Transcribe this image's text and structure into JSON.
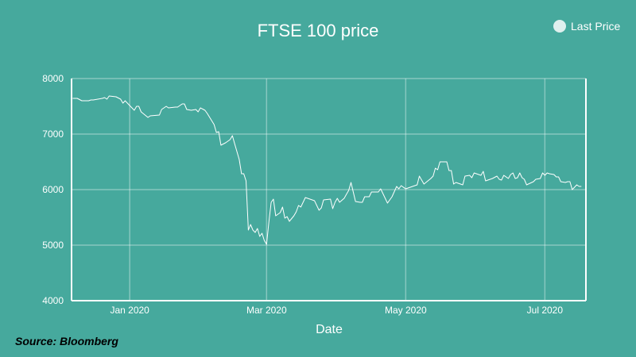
{
  "chart_data": {
    "type": "line",
    "title": "FTSE 100 price",
    "xlabel": "Date",
    "ylabel": "",
    "x_unit": "days since 2020-01-01",
    "xlim": [
      -25.5,
      200
    ],
    "ylim": [
      4000,
      8000
    ],
    "grid": true,
    "legend_position": "top-right",
    "x_ticks": [
      {
        "value": 0,
        "label": "Jan 2020"
      },
      {
        "value": 60,
        "label": "Mar 2020"
      },
      {
        "value": 121,
        "label": "May 2020"
      },
      {
        "value": 182,
        "label": "Jul 2020"
      }
    ],
    "y_ticks": [
      4000,
      5000,
      6000,
      7000,
      8000
    ],
    "series": [
      {
        "name": "Last Price",
        "color": "#ffffff",
        "x": [
          -25,
          -23,
          -21,
          -18,
          -17,
          -16,
          -12,
          -11,
          -10,
          -9,
          -6,
          -4,
          -3,
          -2,
          1,
          2,
          3,
          4,
          5,
          8,
          9,
          13,
          14,
          16,
          17,
          20,
          21,
          23,
          24,
          25,
          27,
          29,
          30,
          31,
          33,
          34,
          37,
          38,
          39,
          40,
          42,
          44,
          45,
          46,
          48,
          49,
          50,
          51,
          52,
          53,
          54,
          55,
          56,
          57,
          58,
          59,
          60,
          61,
          62,
          63,
          64,
          66,
          67,
          68,
          69,
          70,
          72,
          73,
          74,
          75,
          77,
          81,
          83,
          84,
          85,
          88,
          89,
          90,
          91,
          92,
          94,
          95,
          96,
          97,
          99,
          101,
          102,
          103,
          105,
          106,
          109,
          110,
          113,
          115,
          117,
          118,
          119,
          121,
          126,
          127,
          129,
          132,
          133,
          134,
          135,
          136,
          139,
          140,
          141,
          142,
          143,
          146,
          147,
          149,
          150,
          151,
          154,
          155,
          156,
          159,
          161,
          162,
          163,
          164,
          166,
          167,
          168,
          169,
          170,
          171,
          172,
          173,
          174,
          177,
          178,
          180,
          181,
          182,
          183,
          184,
          186,
          187,
          188,
          189,
          191,
          192,
          193,
          194,
          195,
          196,
          197,
          198
        ],
        "y": [
          7643,
          7643,
          7600,
          7600,
          7614,
          7614,
          7643,
          7657,
          7629,
          7686,
          7671,
          7629,
          7557,
          7600,
          7471,
          7429,
          7500,
          7500,
          7400,
          7300,
          7329,
          7343,
          7443,
          7500,
          7471,
          7486,
          7486,
          7543,
          7543,
          7443,
          7429,
          7443,
          7400,
          7471,
          7429,
          7371,
          7171,
          7029,
          7043,
          6800,
          6843,
          6900,
          6971,
          6829,
          6543,
          6286,
          6286,
          6157,
          5271,
          5371,
          5271,
          5229,
          5300,
          5157,
          5214,
          5086,
          5014,
          5414,
          5771,
          5829,
          5529,
          5586,
          5686,
          5486,
          5514,
          5429,
          5529,
          5600,
          5714,
          5686,
          5857,
          5800,
          5629,
          5671,
          5814,
          5829,
          5657,
          5771,
          5843,
          5771,
          5843,
          5914,
          5986,
          6129,
          5786,
          5771,
          5771,
          5871,
          5871,
          5957,
          5957,
          6014,
          5757,
          5871,
          6057,
          6014,
          6071,
          6014,
          6086,
          6243,
          6100,
          6200,
          6243,
          6386,
          6357,
          6500,
          6500,
          6343,
          6343,
          6100,
          6129,
          6086,
          6243,
          6257,
          6214,
          6300,
          6257,
          6329,
          6157,
          6200,
          6243,
          6186,
          6171,
          6257,
          6200,
          6271,
          6300,
          6200,
          6214,
          6300,
          6214,
          6186,
          6086,
          6143,
          6186,
          6200,
          6300,
          6257,
          6300,
          6286,
          6271,
          6229,
          6229,
          6143,
          6129,
          6143,
          6143,
          6000,
          6043,
          6086,
          6057,
          6057
        ]
      }
    ],
    "source": "Source: Bloomberg"
  }
}
